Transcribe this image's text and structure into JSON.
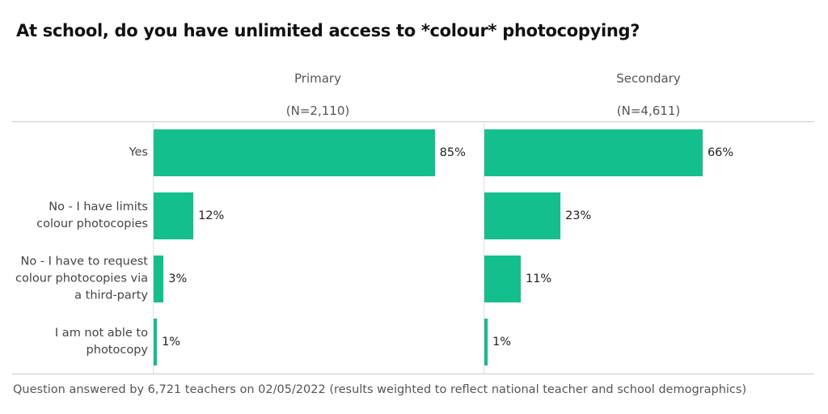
{
  "chart_data": {
    "type": "bar",
    "orientation": "horizontal",
    "title": "At school, do you have unlimited access to *colour* photocopying?",
    "categories": [
      "Yes",
      "No - I have limits colour photocopies",
      "No - I have to request colour photocopies via a third-party",
      "I am not able to photocopy"
    ],
    "series": [
      {
        "name": "Primary",
        "sample": "(N=2,110)",
        "color": "#14bf8e",
        "values": [
          85,
          12,
          3,
          1
        ],
        "value_labels": [
          "85%",
          "12%",
          "3%",
          "1%"
        ]
      },
      {
        "name": "Secondary",
        "sample": "(N=4,611)",
        "color": "#14bf8e",
        "values": [
          66,
          23,
          11,
          1
        ],
        "value_labels": [
          "66%",
          "23%",
          "11%",
          "1%"
        ]
      }
    ],
    "xlim": [
      0,
      100
    ],
    "note": "Question answered by 6,721 teachers on 02/05/2022 (results weighted to reflect national teacher and school demographics)"
  }
}
